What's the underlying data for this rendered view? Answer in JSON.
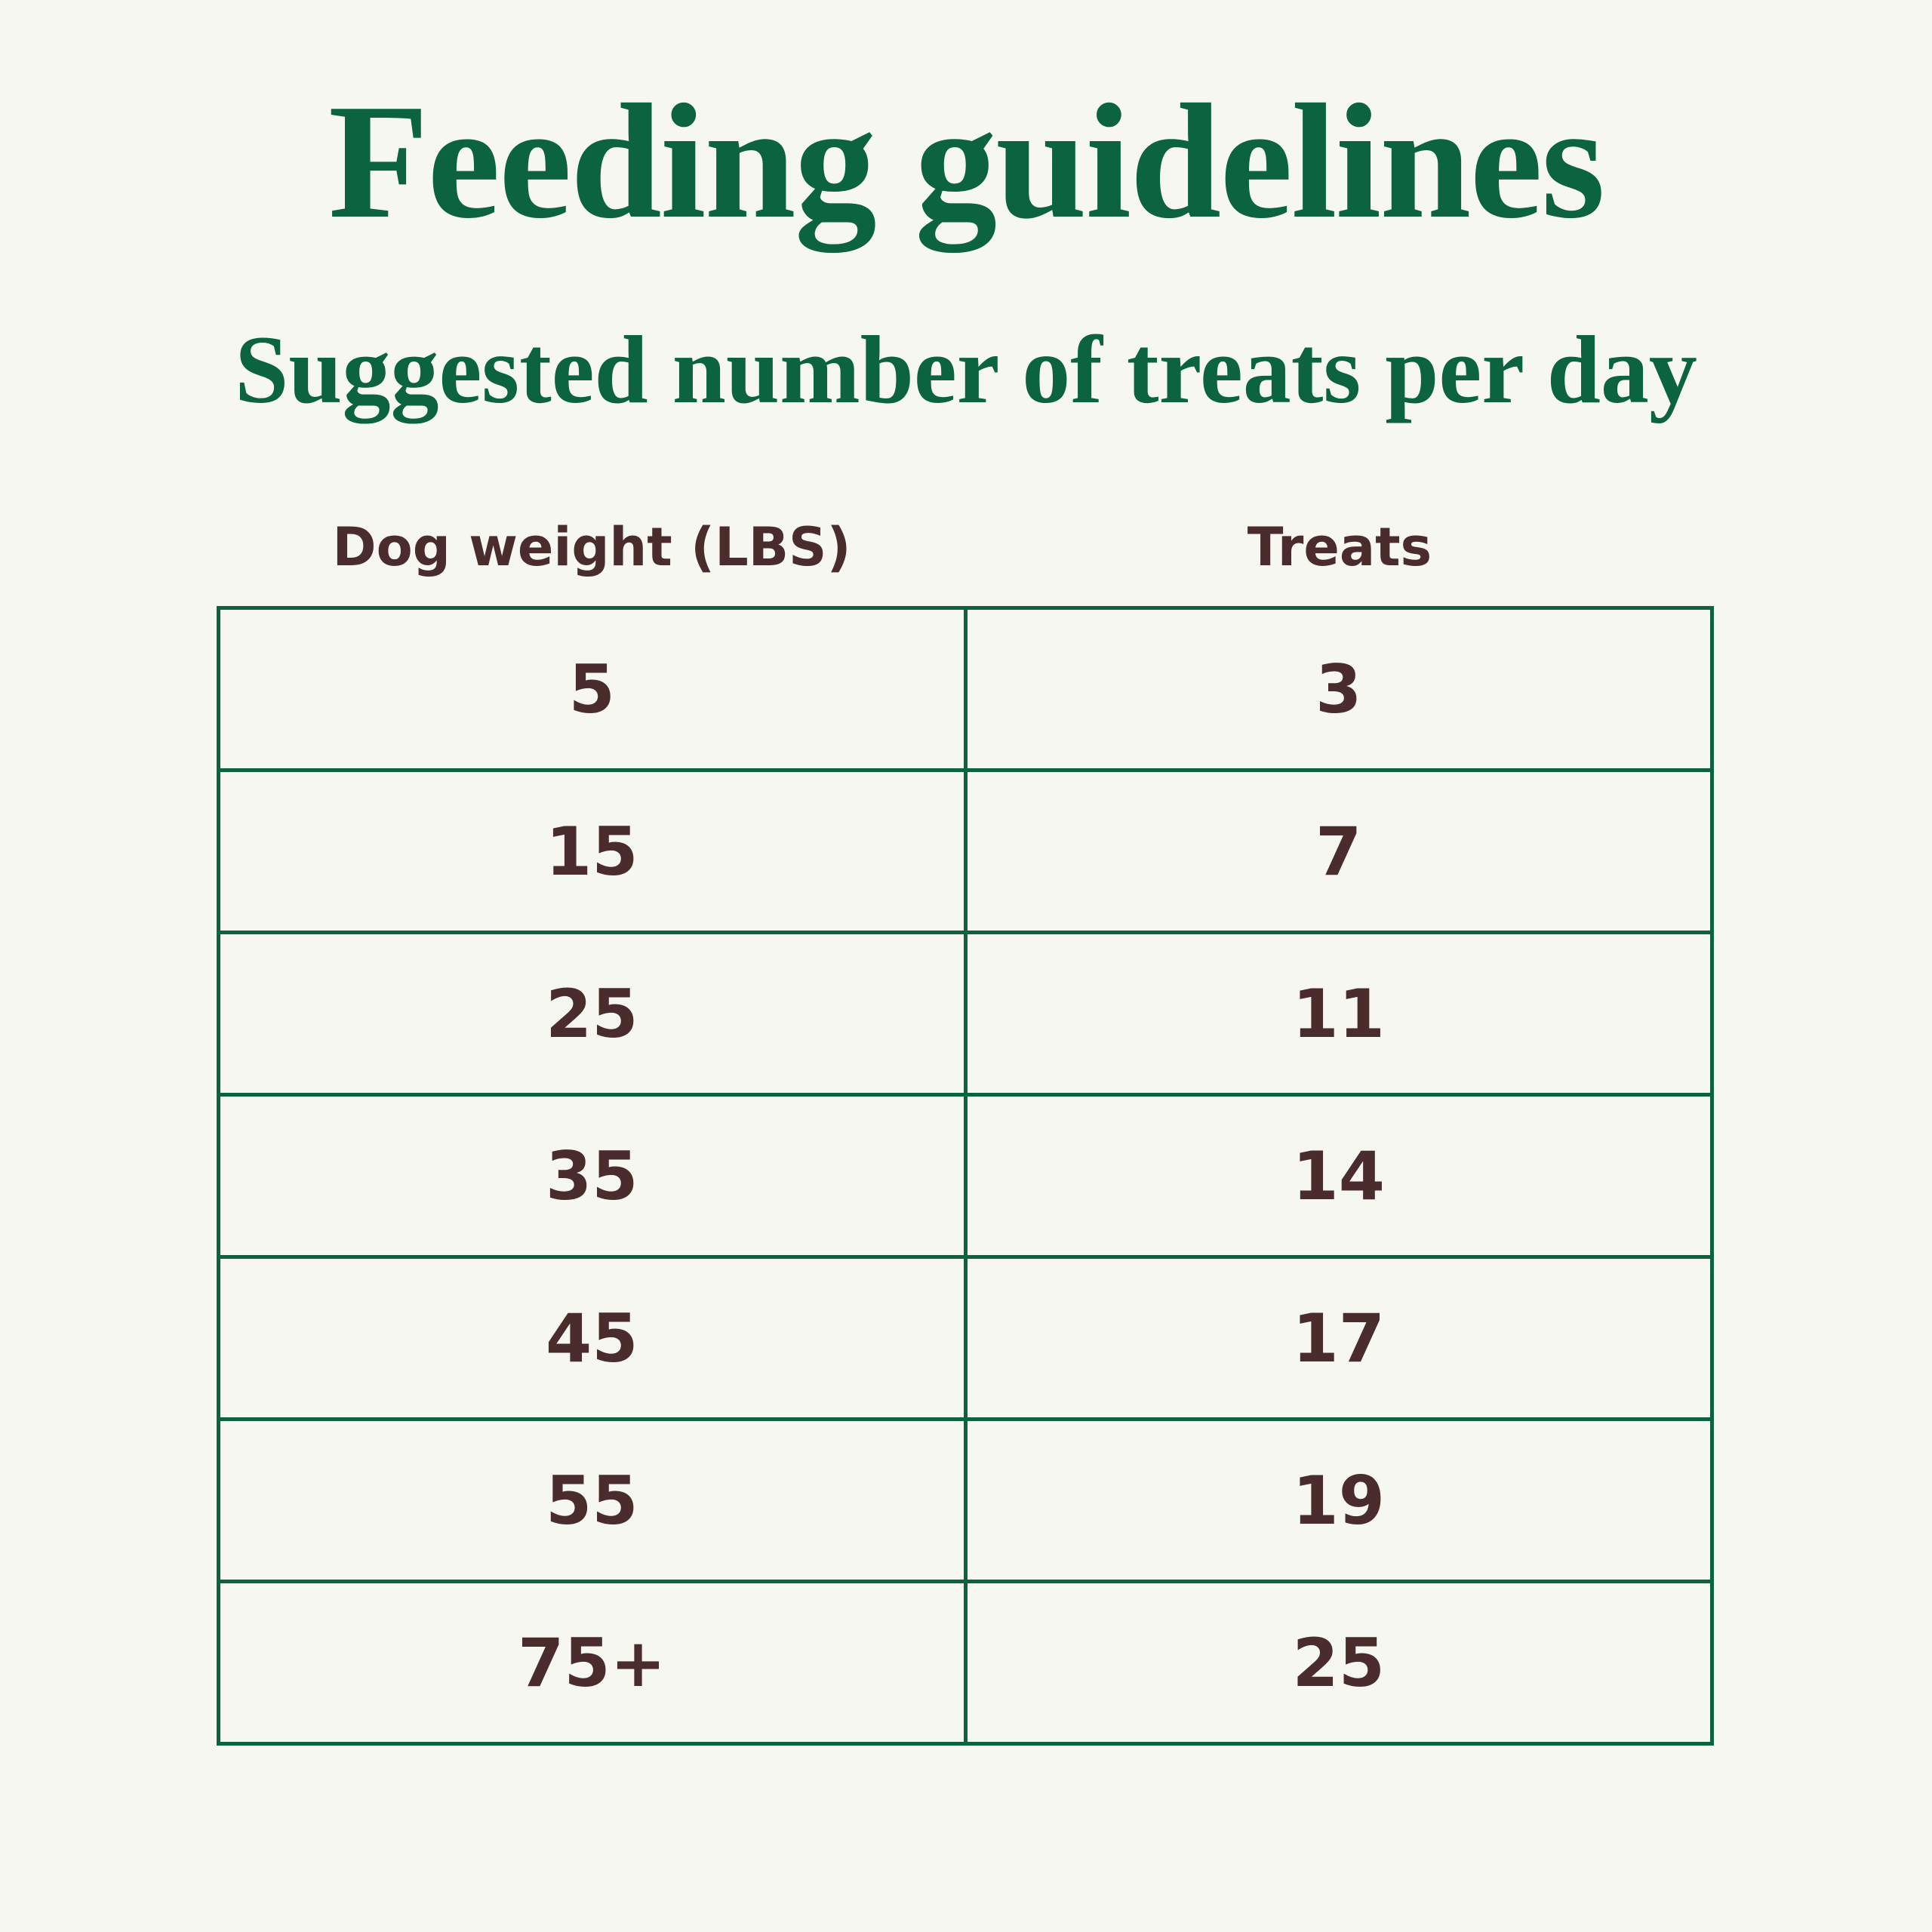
{
  "title": "Feeding guidelines",
  "subtitle": "Suggested number of treats per day",
  "table": {
    "header": [
      "Dog weight (LBS)",
      "Treats"
    ],
    "rows": [
      [
        5,
        3
      ],
      [
        15,
        7
      ],
      [
        25,
        11
      ],
      [
        35,
        14
      ],
      [
        45,
        17
      ],
      [
        55,
        19
      ],
      [
        "75+",
        25
      ]
    ]
  }
}
